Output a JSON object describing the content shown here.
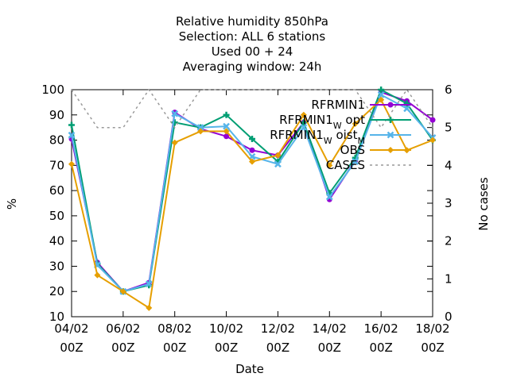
{
  "chart_data": {
    "type": "line",
    "title_lines": [
      "Relative humidity 850hPa",
      "Selection: ALL      6 stations",
      "Used  00 + 24",
      "Averaging window: 24h"
    ],
    "xlabel": "Date",
    "ylabel": "%",
    "y2label": "No cases",
    "x_ticks": [
      {
        "top": "04/02",
        "bottom": "00Z",
        "day": 0
      },
      {
        "top": "06/02",
        "bottom": "00Z",
        "day": 2
      },
      {
        "top": "08/02",
        "bottom": "00Z",
        "day": 4
      },
      {
        "top": "10/02",
        "bottom": "00Z",
        "day": 6
      },
      {
        "top": "12/02",
        "bottom": "00Z",
        "day": 8
      },
      {
        "top": "14/02",
        "bottom": "00Z",
        "day": 10
      },
      {
        "top": "16/02",
        "bottom": "00Z",
        "day": 12
      },
      {
        "top": "18/02",
        "bottom": "00Z",
        "day": 14
      }
    ],
    "xlim": [
      0,
      14
    ],
    "ylim": [
      10,
      100
    ],
    "y_ticks": [
      10,
      20,
      30,
      40,
      50,
      60,
      70,
      80,
      90,
      100
    ],
    "y2lim": [
      0,
      6
    ],
    "y2_ticks": [
      0,
      1,
      2,
      3,
      4,
      5,
      6
    ],
    "legend_position": "top-right",
    "x": [
      0,
      1,
      2,
      3,
      4,
      5,
      6,
      7,
      8,
      9,
      10,
      11,
      12,
      13,
      14
    ],
    "series": [
      {
        "name": "RFRMIN1",
        "color": "#9400d3",
        "marker": "circle",
        "axis": "y",
        "values": [
          80.5,
          31.5,
          20.0,
          23.5,
          91.0,
          84.5,
          81.5,
          76.0,
          74.0,
          87.0,
          56.5,
          72.0,
          99.0,
          95.5,
          88.0
        ]
      },
      {
        "name": "RFRMIN1",
        "sub": "W",
        "suffix": " opt",
        "color": "#009e73",
        "marker": "plus",
        "axis": "y",
        "values": [
          86.0,
          31.0,
          20.0,
          22.5,
          87.0,
          85.0,
          90.0,
          80.5,
          71.5,
          87.0,
          59.0,
          73.0,
          100.0,
          94.5,
          80.0
        ]
      },
      {
        "name": "RFRMIN1",
        "sub": "W",
        "suffix": " oist",
        "sub2": "M",
        "color": "#56b4e9",
        "marker": "x",
        "axis": "y",
        "values": [
          82.0,
          30.5,
          20.0,
          23.0,
          90.5,
          85.0,
          85.5,
          73.5,
          70.5,
          85.0,
          57.5,
          71.5,
          98.0,
          92.5,
          81.0
        ]
      },
      {
        "name": "OBS",
        "color": "#e69f00",
        "marker": "diamond",
        "axis": "y",
        "values": [
          70.5,
          26.5,
          20.0,
          13.5,
          79.0,
          83.5,
          83.5,
          71.5,
          74.0,
          90.0,
          70.0,
          86.5,
          96.0,
          76.0,
          80.0
        ]
      },
      {
        "name": "CASES",
        "color": "#999999",
        "dash": "3,4",
        "marker": "none",
        "axis": "y2",
        "values": [
          6,
          5,
          5,
          6,
          5,
          6,
          6,
          6,
          6,
          6,
          6,
          6,
          5,
          6,
          5
        ]
      }
    ]
  }
}
